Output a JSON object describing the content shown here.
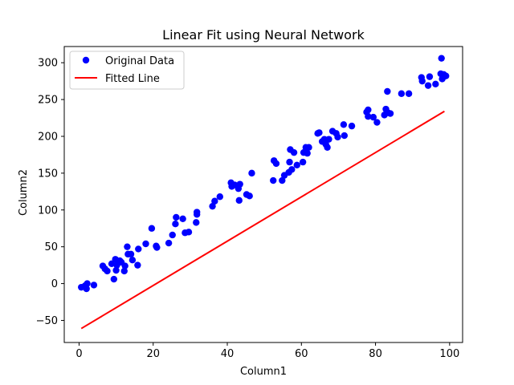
{
  "chart_data": {
    "type": "scatter",
    "title": "Linear Fit using Neural Network",
    "xlabel": "Column1",
    "ylabel": "Column2",
    "xlim": [
      -4,
      103.5
    ],
    "ylim": [
      -80,
      322
    ],
    "xticks": [
      0,
      20,
      40,
      60,
      80,
      100
    ],
    "yticks": [
      -50,
      0,
      50,
      100,
      150,
      200,
      250,
      300
    ],
    "grid": false,
    "legend_position": "top-left",
    "series": [
      {
        "name": "Original Data",
        "kind": "scatter",
        "color": "#0000ff",
        "points": [
          [
            0.6,
            -5
          ],
          [
            1.6,
            -3
          ],
          [
            2.0,
            -7
          ],
          [
            2.2,
            0
          ],
          [
            4.0,
            -2
          ],
          [
            6.4,
            24
          ],
          [
            7.0,
            20
          ],
          [
            7.6,
            17
          ],
          [
            8.8,
            27
          ],
          [
            9.4,
            6
          ],
          [
            9.8,
            33
          ],
          [
            10.0,
            18
          ],
          [
            10.2,
            25
          ],
          [
            11.0,
            31
          ],
          [
            11.4,
            29
          ],
          [
            12.2,
            17
          ],
          [
            12.4,
            24
          ],
          [
            13.0,
            50
          ],
          [
            13.2,
            40
          ],
          [
            14.0,
            40
          ],
          [
            14.4,
            32
          ],
          [
            15.8,
            25
          ],
          [
            16.0,
            47
          ],
          [
            18.0,
            54
          ],
          [
            19.6,
            75
          ],
          [
            20.8,
            51
          ],
          [
            21.0,
            49
          ],
          [
            24.2,
            55
          ],
          [
            25.2,
            66
          ],
          [
            26.0,
            81
          ],
          [
            26.2,
            90
          ],
          [
            28.0,
            88
          ],
          [
            28.6,
            69
          ],
          [
            29.6,
            70
          ],
          [
            31.6,
            83
          ],
          [
            31.8,
            94
          ],
          [
            31.8,
            97
          ],
          [
            36.0,
            105
          ],
          [
            36.6,
            112
          ],
          [
            38.0,
            118
          ],
          [
            41.0,
            137
          ],
          [
            41.2,
            132
          ],
          [
            42.0,
            134
          ],
          [
            43.0,
            129
          ],
          [
            43.4,
            135
          ],
          [
            43.2,
            113
          ],
          [
            45.2,
            121
          ],
          [
            46.0,
            119
          ],
          [
            46.6,
            150
          ],
          [
            52.4,
            140
          ],
          [
            52.6,
            167
          ],
          [
            53.2,
            163
          ],
          [
            54.8,
            140
          ],
          [
            55.4,
            147
          ],
          [
            56.6,
            151
          ],
          [
            56.8,
            165
          ],
          [
            57.0,
            182
          ],
          [
            57.4,
            155
          ],
          [
            58.0,
            178
          ],
          [
            58.8,
            161
          ],
          [
            60.4,
            165
          ],
          [
            60.6,
            178
          ],
          [
            61.2,
            185
          ],
          [
            61.6,
            177
          ],
          [
            62.0,
            185
          ],
          [
            64.4,
            204
          ],
          [
            64.8,
            205
          ],
          [
            65.6,
            193
          ],
          [
            66.2,
            196
          ],
          [
            66.6,
            189
          ],
          [
            67.0,
            185
          ],
          [
            67.4,
            196
          ],
          [
            68.4,
            207
          ],
          [
            69.4,
            204
          ],
          [
            69.8,
            199
          ],
          [
            71.4,
            216
          ],
          [
            71.6,
            201
          ],
          [
            73.6,
            214
          ],
          [
            77.6,
            233
          ],
          [
            78.0,
            236
          ],
          [
            78.0,
            227
          ],
          [
            79.4,
            226
          ],
          [
            80.4,
            219
          ],
          [
            82.4,
            229
          ],
          [
            82.8,
            237
          ],
          [
            83.2,
            261
          ],
          [
            83.4,
            232
          ],
          [
            84.0,
            231
          ],
          [
            87.0,
            258
          ],
          [
            89.0,
            258
          ],
          [
            92.4,
            280
          ],
          [
            92.6,
            275
          ],
          [
            94.2,
            269
          ],
          [
            94.6,
            281
          ],
          [
            96.2,
            271
          ],
          [
            97.6,
            285
          ],
          [
            97.8,
            306
          ],
          [
            98.0,
            278
          ],
          [
            98.2,
            280
          ],
          [
            98.4,
            284
          ],
          [
            99.0,
            282
          ]
        ]
      },
      {
        "name": "Fitted Line",
        "kind": "line",
        "color": "#ff0000",
        "points": [
          [
            0.6,
            -61
          ],
          [
            98.6,
            234
          ]
        ]
      }
    ]
  }
}
